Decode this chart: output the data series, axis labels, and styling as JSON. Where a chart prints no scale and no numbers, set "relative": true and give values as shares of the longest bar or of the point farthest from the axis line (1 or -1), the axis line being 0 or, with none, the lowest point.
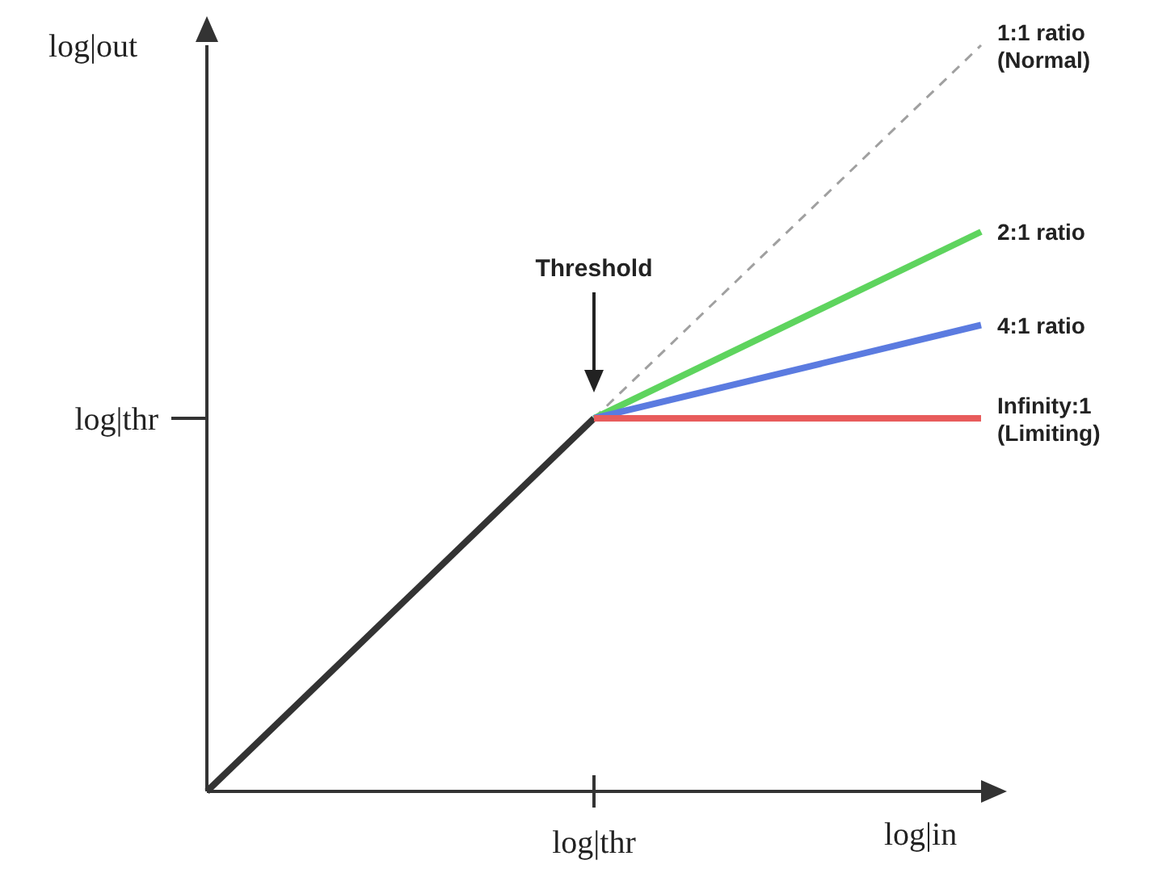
{
  "chart_data": {
    "type": "line",
    "xlabel": "log|in",
    "ylabel": "log|out",
    "relative": true,
    "categories": [
      null,
      null,
      null
    ],
    "grid": false,
    "legend": false,
    "marker": "none",
    "series": [
      {
        "color": "#333333",
        "values": [
          0,
          0.5,
          null
        ]
      },
      {
        "name": "1:1 ratio (Normal)",
        "color": "#a0a0a0",
        "line_style": "dashed",
        "values": [
          null,
          0.5,
          1
        ]
      },
      {
        "name": "2:1 ratio",
        "color": "#5ed45e",
        "values": [
          null,
          0.5,
          0.75
        ]
      },
      {
        "name": "4:1 ratio",
        "color": "#5b7be0",
        "values": [
          null,
          0.5,
          0.625
        ]
      },
      {
        "name": "Infinity:1 (Limiting)",
        "color": "#e85c5c",
        "values": [
          null,
          0.5,
          0.5
        ]
      }
    ],
    "annotations": [
      "Threshold",
      "log|thr",
      "log|thr"
    ]
  }
}
